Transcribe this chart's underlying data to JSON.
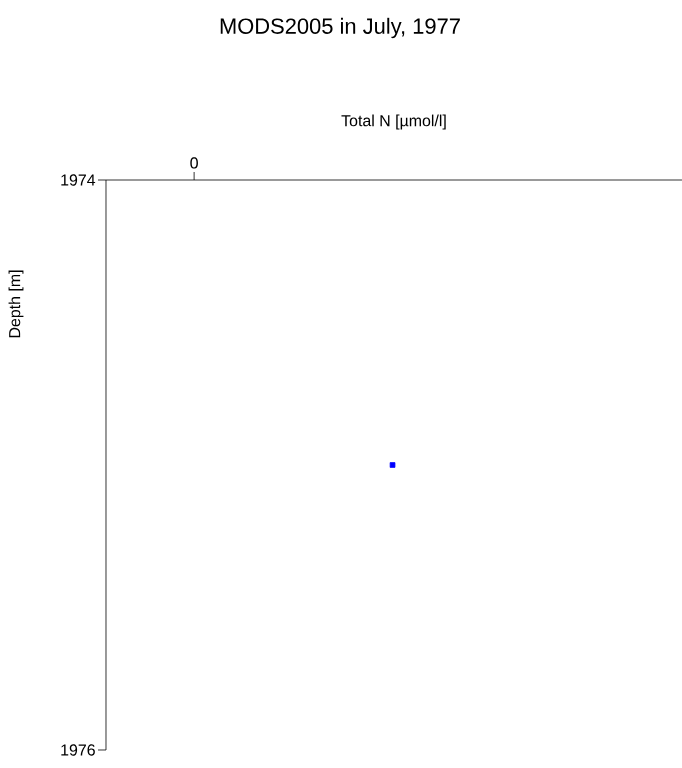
{
  "chart_data": {
    "type": "scatter",
    "title": "MODS2005 in July, 1977",
    "xlabel": "Total N [µmol/l]",
    "ylabel": "Depth [m]",
    "categories": [
      null
    ],
    "values": [
      1975
    ],
    "color": "#0000ff",
    "marker": "square",
    "annotations": [
      "0"
    ],
    "ylim": [
      1976,
      1974
    ],
    "yticks": [
      1974,
      1976
    ]
  }
}
